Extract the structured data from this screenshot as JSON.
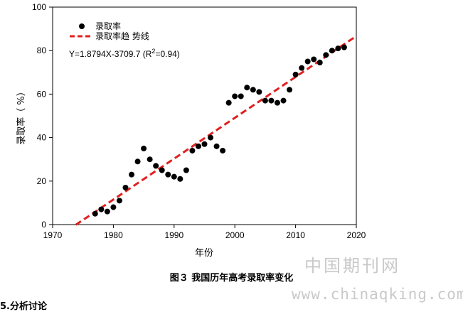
{
  "chart_data": {
    "type": "scatter",
    "ylabel": "录取率（ %）",
    "xlabel": "年份",
    "xlim": [
      1970,
      2020
    ],
    "ylim": [
      0,
      100
    ],
    "xticks": [
      1970,
      1980,
      1990,
      2000,
      2010,
      2020
    ],
    "yticks": [
      0,
      20,
      40,
      60,
      80,
      100
    ],
    "grid": false,
    "legend_position": "top-left",
    "series": [
      {
        "name": "录取率",
        "marker": "circle",
        "color": "#000000",
        "x": [
          1977,
          1978,
          1979,
          1980,
          1981,
          1982,
          1983,
          1984,
          1985,
          1986,
          1987,
          1988,
          1989,
          1990,
          1991,
          1992,
          1993,
          1994,
          1995,
          1996,
          1997,
          1998,
          1999,
          2000,
          2001,
          2002,
          2003,
          2004,
          2005,
          2006,
          2007,
          2008,
          2009,
          2010,
          2011,
          2012,
          2013,
          2014,
          2015,
          2016,
          2017,
          2018
        ],
        "y": [
          5,
          7,
          6,
          8,
          11,
          17,
          23,
          29,
          35,
          30,
          27,
          25,
          23,
          22,
          21,
          25,
          34,
          36,
          37,
          40,
          36,
          34,
          56,
          59,
          59,
          63,
          62,
          61,
          57,
          57,
          56,
          57,
          62,
          69,
          72,
          75,
          76,
          74.5,
          78,
          80,
          81,
          81.5
        ]
      },
      {
        "name": "录取率趋  势线",
        "type": "trendline",
        "color": "#e02020",
        "slope": 1.8794,
        "intercept": -3709.7,
        "x_range": [
          1973.8,
          2020
        ]
      }
    ],
    "annotation": "Y=1.8794X-3709.7 (R",
    "annotation_sup": "2",
    "annotation_tail": "=0.94)"
  },
  "caption": "图３ 我国历年高考录取率变化",
  "watermark": {
    "cn": "中国期刊网",
    "url": "www.chinaqking.com"
  },
  "cut_text": "5.分析讨论"
}
